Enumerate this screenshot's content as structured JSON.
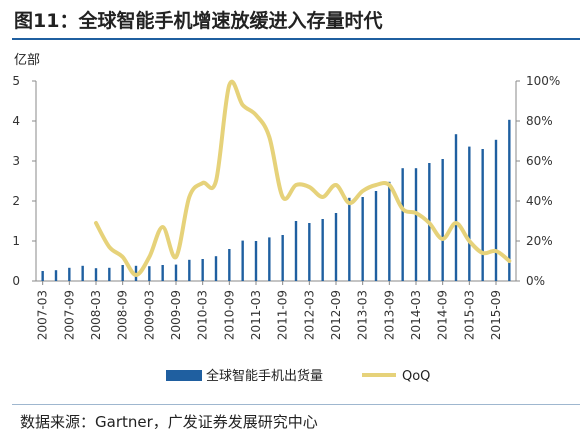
{
  "figure": {
    "title": "图11：全球智能手机增速放缓进入存量时代",
    "unit_label": "亿部",
    "source": "数据来源：Gartner，广发证券发展研究中心"
  },
  "colors": {
    "bar": "#1f5fa0",
    "line": "#e6d27a",
    "rule": "#1f5fa0"
  },
  "chart_data": {
    "type": "bar+line",
    "categories": [
      "2007-03",
      "2007-06",
      "2007-09",
      "2007-12",
      "2008-03",
      "2008-06",
      "2008-09",
      "2008-12",
      "2009-03",
      "2009-06",
      "2009-09",
      "2009-12",
      "2010-03",
      "2010-06",
      "2010-09",
      "2010-12",
      "2011-03",
      "2011-06",
      "2011-09",
      "2011-12",
      "2012-03",
      "2012-06",
      "2012-09",
      "2012-12",
      "2013-03",
      "2013-06",
      "2013-09",
      "2013-12",
      "2014-03",
      "2014-06",
      "2014-09",
      "2014-12",
      "2015-03",
      "2015-06",
      "2015-09",
      "2015-12"
    ],
    "x_tick_labels": [
      "2007-03",
      "2007-09",
      "2008-03",
      "2008-09",
      "2009-03",
      "2009-09",
      "2010-03",
      "2010-09",
      "2011-03",
      "2011-09",
      "2012-03",
      "2012-09",
      "2013-03",
      "2013-09",
      "2014-03",
      "2014-09",
      "2015-03",
      "2015-09"
    ],
    "series": [
      {
        "name": "全球智能手机出货量",
        "type": "bar",
        "axis": "left",
        "values": [
          0.25,
          0.27,
          0.33,
          0.38,
          0.32,
          0.33,
          0.4,
          0.38,
          0.37,
          0.4,
          0.41,
          0.53,
          0.55,
          0.62,
          0.8,
          1.01,
          1.0,
          1.09,
          1.15,
          1.5,
          1.45,
          1.55,
          1.7,
          2.08,
          2.1,
          2.25,
          2.48,
          2.82,
          2.82,
          2.95,
          3.05,
          3.67,
          3.36,
          3.3,
          3.53,
          4.03
        ]
      },
      {
        "name": "QoQ",
        "type": "line",
        "axis": "right",
        "values": [
          null,
          null,
          null,
          null,
          29,
          17,
          12,
          3,
          12,
          27,
          12,
          42,
          49,
          50,
          98,
          88,
          83,
          72,
          42,
          48,
          47,
          42,
          48,
          39,
          45,
          48,
          48,
          36,
          34,
          29,
          21,
          29,
          20,
          14,
          15,
          10
        ]
      }
    ],
    "y_left": {
      "min": 0,
      "max": 5,
      "ticks": [
        "0",
        "1",
        "2",
        "3",
        "4",
        "5"
      ]
    },
    "y_right": {
      "min": 0,
      "max": 100,
      "ticks": [
        "0%",
        "20%",
        "40%",
        "60%",
        "80%",
        "100%"
      ]
    },
    "legend": {
      "position": "bottom"
    }
  }
}
